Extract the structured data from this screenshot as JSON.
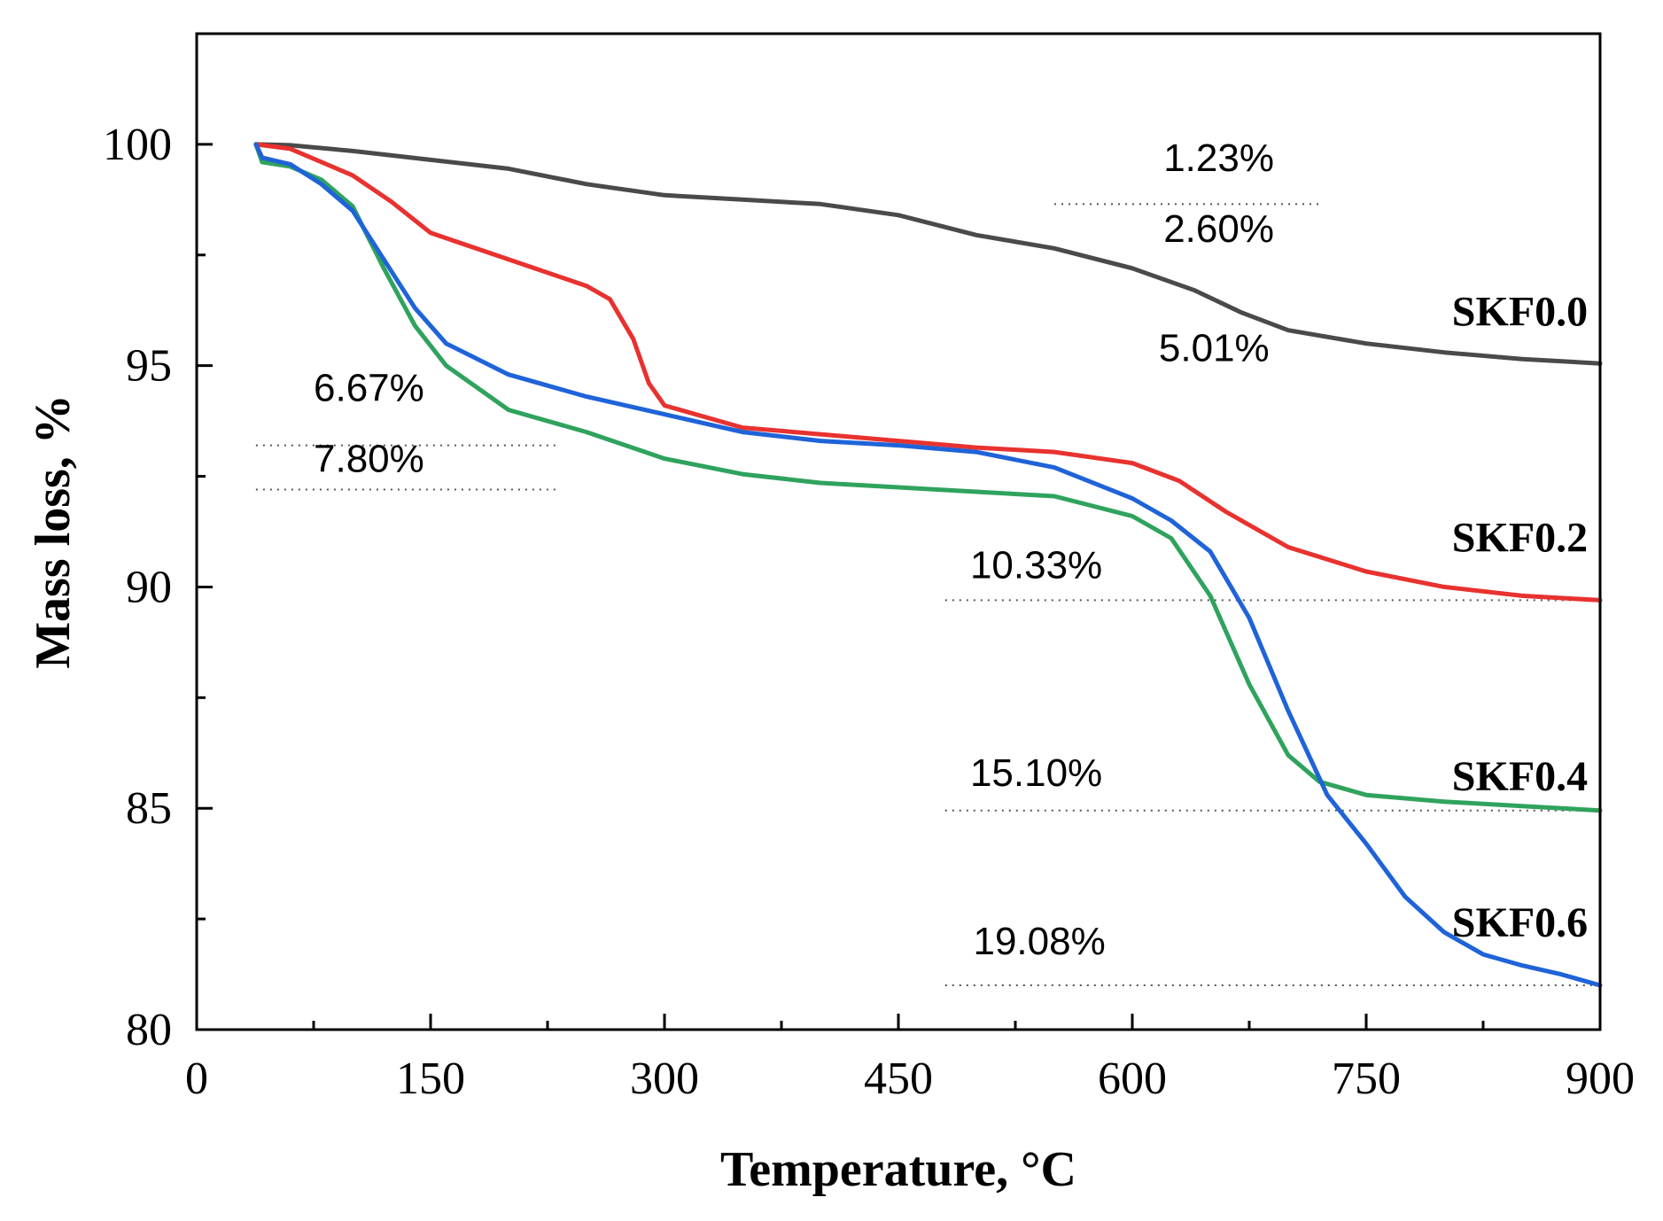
{
  "chart_data": {
    "type": "line",
    "title": "",
    "xlabel": "Temperature, °C",
    "ylabel": "Mass loss, %",
    "xlim": [
      0,
      900
    ],
    "ylim": [
      80,
      102.5
    ],
    "xticks": [
      0,
      150,
      300,
      450,
      600,
      750,
      900
    ],
    "xtick_labels": [
      "0",
      "150",
      "300",
      "450",
      "600",
      "750",
      "900"
    ],
    "yticks": [
      80,
      85,
      90,
      95,
      100
    ],
    "ytick_labels": [
      "80",
      "85",
      "90",
      "95",
      "100"
    ],
    "grid": false,
    "legend": "none",
    "series": [
      {
        "name": "SKF0.0",
        "color": "#4a4a4a",
        "x": [
          38,
          60,
          100,
          150,
          200,
          250,
          300,
          350,
          400,
          450,
          500,
          550,
          600,
          640,
          670,
          700,
          750,
          800,
          850,
          900
        ],
        "y": [
          100,
          99.98,
          99.85,
          99.65,
          99.45,
          99.1,
          98.85,
          98.75,
          98.65,
          98.4,
          97.95,
          97.65,
          97.2,
          96.7,
          96.2,
          95.8,
          95.5,
          95.3,
          95.15,
          95.05
        ]
      },
      {
        "name": "SKF0.2",
        "color": "#e8322f",
        "x": [
          38,
          60,
          100,
          125,
          150,
          200,
          250,
          265,
          280,
          290,
          300,
          350,
          400,
          450,
          500,
          550,
          600,
          630,
          660,
          700,
          750,
          800,
          850,
          900
        ],
        "y": [
          100,
          99.9,
          99.3,
          98.7,
          98.0,
          97.4,
          96.8,
          96.5,
          95.6,
          94.6,
          94.1,
          93.6,
          93.45,
          93.3,
          93.15,
          93.05,
          92.8,
          92.4,
          91.7,
          90.9,
          90.35,
          90.0,
          89.8,
          89.7
        ]
      },
      {
        "name": "SKF0.4",
        "color": "#2fa35d",
        "x": [
          38,
          42,
          60,
          80,
          100,
          120,
          140,
          160,
          200,
          250,
          300,
          350,
          400,
          450,
          500,
          550,
          600,
          625,
          650,
          675,
          700,
          720,
          750,
          800,
          850,
          900
        ],
        "y": [
          100,
          99.6,
          99.5,
          99.2,
          98.6,
          97.2,
          95.9,
          95.0,
          94.0,
          93.5,
          92.9,
          92.55,
          92.35,
          92.25,
          92.15,
          92.05,
          91.6,
          91.1,
          89.8,
          87.8,
          86.2,
          85.6,
          85.3,
          85.15,
          85.05,
          84.95
        ]
      },
      {
        "name": "SKF0.6",
        "color": "#1f63d8",
        "x": [
          38,
          42,
          60,
          80,
          100,
          120,
          140,
          160,
          200,
          250,
          300,
          350,
          400,
          450,
          500,
          550,
          600,
          625,
          650,
          675,
          700,
          725,
          750,
          775,
          800,
          825,
          850,
          875,
          900
        ],
        "y": [
          100,
          99.7,
          99.55,
          99.1,
          98.5,
          97.4,
          96.3,
          95.5,
          94.8,
          94.3,
          93.9,
          93.5,
          93.3,
          93.2,
          93.05,
          92.7,
          92.0,
          91.5,
          90.8,
          89.3,
          87.2,
          85.3,
          84.2,
          83.0,
          82.2,
          81.7,
          81.45,
          81.25,
          81.0
        ]
      }
    ],
    "series_labels": [
      {
        "text": "SKF0.0",
        "x": 805,
        "y": 95.9
      },
      {
        "text": "SKF0.2",
        "x": 805,
        "y": 90.8
      },
      {
        "text": "SKF0.4",
        "x": 805,
        "y": 85.4
      },
      {
        "text": "SKF0.6",
        "x": 805,
        "y": 82.1
      }
    ],
    "reference_lines": [
      {
        "y": 98.65,
        "x_from": 550,
        "x_to": 720
      },
      {
        "y": 93.2,
        "x_from": 38,
        "x_to": 230
      },
      {
        "y": 92.2,
        "x_from": 38,
        "x_to": 230
      },
      {
        "y": 89.7,
        "x_from": 480,
        "x_to": 900
      },
      {
        "y": 84.95,
        "x_from": 480,
        "x_to": 900
      },
      {
        "y": 81.0,
        "x_from": 480,
        "x_to": 900
      }
    ],
    "annotations": [
      {
        "text": "1.23%",
        "x": 620,
        "y": 99.4
      },
      {
        "text": "2.60%",
        "x": 620,
        "y": 97.8
      },
      {
        "text": "5.01%",
        "x": 617,
        "y": 95.1
      },
      {
        "text": "6.67%",
        "x": 75,
        "y": 94.2
      },
      {
        "text": "7.80%",
        "x": 75,
        "y": 92.6
      },
      {
        "text": "10.33%",
        "x": 496,
        "y": 90.2
      },
      {
        "text": "15.10%",
        "x": 496,
        "y": 85.5
      },
      {
        "text": "19.08%",
        "x": 498,
        "y": 81.7
      }
    ]
  }
}
